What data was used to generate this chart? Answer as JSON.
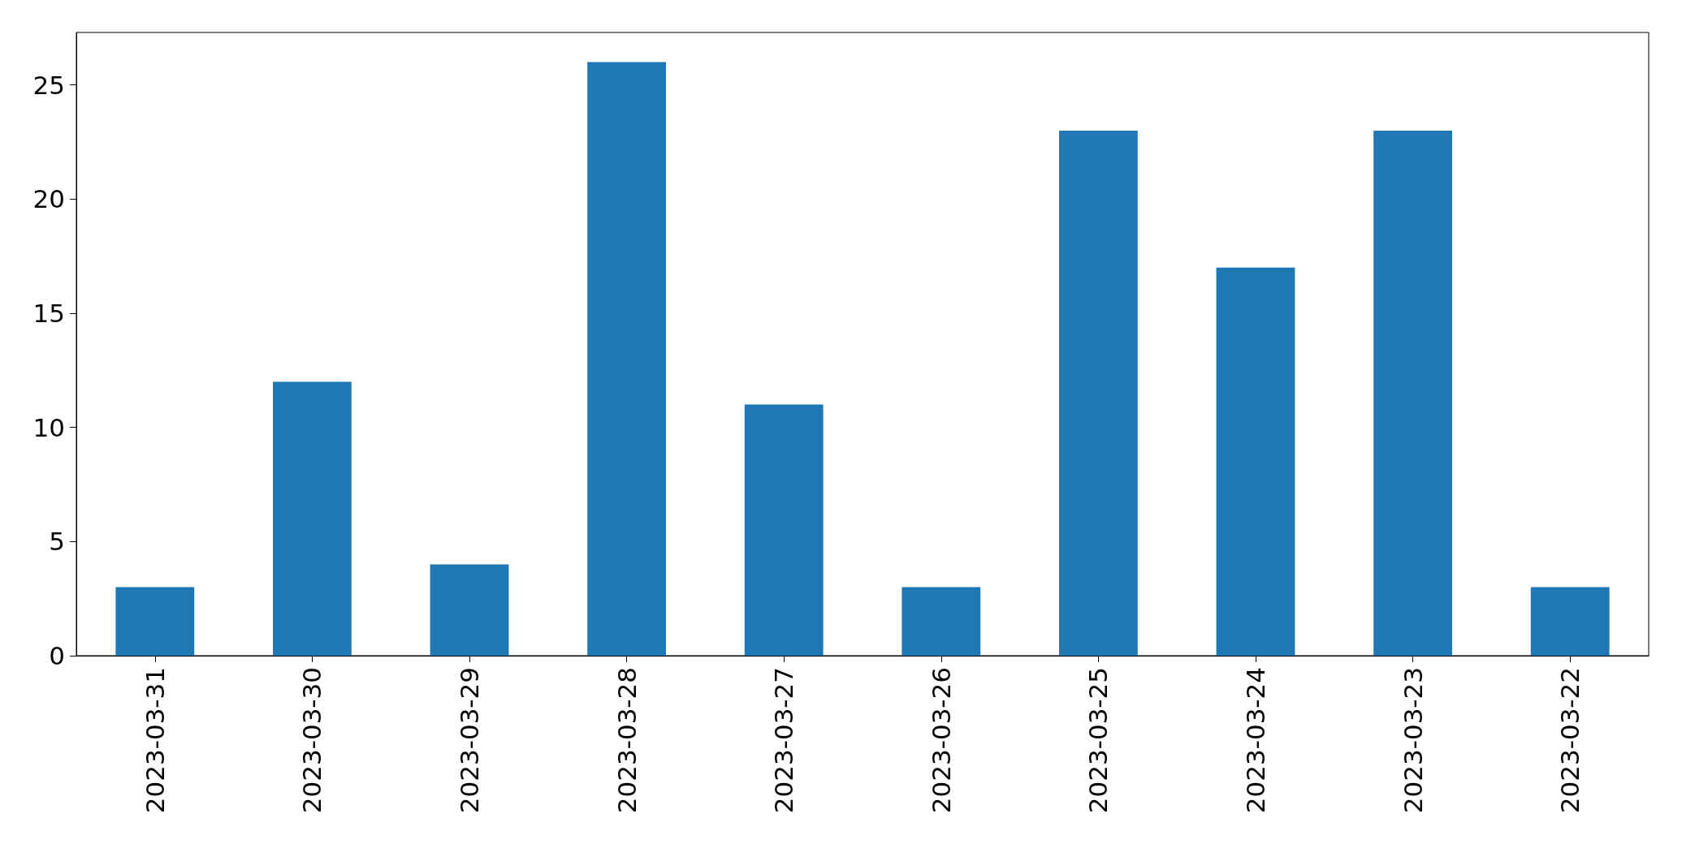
{
  "chart_data": {
    "type": "bar",
    "categories": [
      "2023-03-31",
      "2023-03-30",
      "2023-03-29",
      "2023-03-28",
      "2023-03-27",
      "2023-03-26",
      "2023-03-25",
      "2023-03-24",
      "2023-03-23",
      "2023-03-22"
    ],
    "values": [
      3,
      12,
      4,
      26,
      11,
      3,
      23,
      17,
      23,
      3
    ],
    "color": "#1f77b4",
    "ylim": [
      0,
      27.3
    ],
    "yticks": [
      0,
      5,
      10,
      15,
      20,
      25
    ],
    "grid": false
  }
}
